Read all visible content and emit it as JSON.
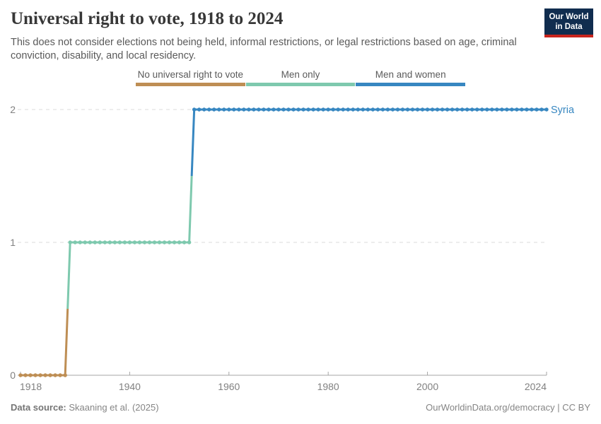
{
  "header": {
    "title": "Universal right to vote, 1918 to 2024",
    "subtitle": "This does not consider elections not being held, informal restrictions, or legal restrictions based on age, criminal conviction, disability, and local residency.",
    "logo": {
      "line1": "Our World",
      "line2": "in Data",
      "bg_color": "#102d4f",
      "accent_color": "#c8241d"
    }
  },
  "legend": {
    "items": [
      {
        "label": "No universal right to vote",
        "color": "#be8e54"
      },
      {
        "label": "Men only",
        "color": "#7ec9ae"
      },
      {
        "label": "Men and women",
        "color": "#3787c1"
      }
    ]
  },
  "chart_data": {
    "type": "line",
    "subtype": "step-categorical",
    "title": "Universal right to vote, 1918 to 2024",
    "entity_label": "Syria",
    "entity_label_color": "#3787c1",
    "x_ticks": [
      1918,
      1940,
      1960,
      1980,
      2000,
      2024
    ],
    "y_ticks": [
      0,
      1,
      2
    ],
    "xlim": [
      1918,
      2024
    ],
    "ylim": [
      0,
      2
    ],
    "grid": "dashed-horizontal",
    "value_labels": {
      "0": "No universal right to vote",
      "1": "Men only",
      "2": "Men and women"
    },
    "series": [
      {
        "name": "Syria",
        "segments": [
          {
            "value": 0,
            "label": "No universal right to vote",
            "start_year": 1918,
            "end_year": 1927,
            "color": "#be8e54"
          },
          {
            "value": 1,
            "label": "Men only",
            "start_year": 1928,
            "end_year": 1952,
            "color": "#7ec9ae"
          },
          {
            "value": 2,
            "label": "Men and women",
            "start_year": 1953,
            "end_year": 2024,
            "color": "#3787c1"
          }
        ]
      }
    ],
    "axis_color": "#a6a6a6",
    "gridline_color": "#dbdbdb",
    "tick_label_color": "#818181"
  },
  "footer": {
    "datasource_label": "Data source:",
    "datasource_value": " Skaaning et al. (2025)",
    "right_text": "OurWorldinData.org/democracy | CC BY"
  }
}
